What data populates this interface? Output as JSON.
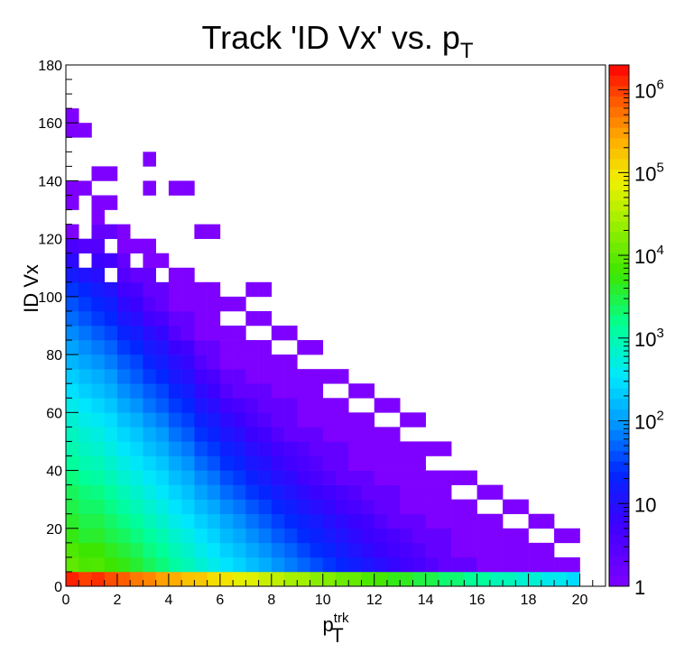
{
  "chart_data": {
    "type": "heatmap",
    "title": "Track 'ID Vx' vs. p",
    "title_subscript": "T",
    "xlabel": "p",
    "xlabel_subscript": "T",
    "xlabel_superscript": "trk",
    "ylabel": "ID Vx",
    "xlim": [
      0,
      21
    ],
    "ylim": [
      0,
      180
    ],
    "x_ticks": [
      "0",
      "2",
      "4",
      "6",
      "8",
      "10",
      "12",
      "14",
      "16",
      "18",
      "20"
    ],
    "y_ticks": [
      "0",
      "20",
      "40",
      "60",
      "80",
      "100",
      "120",
      "140",
      "160",
      "180"
    ],
    "x_bin_width": 0.5,
    "y_bin_width": 5,
    "z_scale": "log",
    "z_range": [
      1,
      2000000
    ],
    "z_labels": [
      {
        "base": "1",
        "exp": ""
      },
      {
        "base": "10",
        "exp": ""
      },
      {
        "base": "10",
        "exp": "2"
      },
      {
        "base": "10",
        "exp": "3"
      },
      {
        "base": "10",
        "exp": "4"
      },
      {
        "base": "10",
        "exp": "5"
      },
      {
        "base": "10",
        "exp": "6"
      }
    ],
    "z_label_values": [
      1,
      10,
      100,
      1000,
      10000,
      100000,
      1000000
    ],
    "column_profiles": [
      [
        1400000,
        10000.0,
        8000,
        5000,
        4000,
        3000,
        2500,
        1800,
        1300,
        1000,
        800,
        600,
        450,
        300,
        220,
        150,
        110,
        80,
        55,
        40,
        28,
        15,
        8,
        4,
        1,
        0,
        1,
        1,
        0,
        0,
        0,
        1,
        1
      ],
      [
        1200000,
        8000,
        6000,
        4000,
        3000,
        2200,
        1700,
        1200,
        900,
        650,
        500,
        380,
        260,
        180,
        130,
        90,
        65,
        45,
        30,
        22,
        15,
        9,
        6,
        3,
        2,
        1,
        1,
        0,
        1,
        0,
        0,
        0,
        0
      ],
      [
        700000,
        5000,
        3500,
        2400,
        1700,
        1200,
        900,
        650,
        480,
        350,
        260,
        180,
        120,
        85,
        60,
        45,
        30,
        20,
        12,
        8,
        5,
        3,
        2,
        1,
        1,
        0,
        0,
        0,
        0,
        0,
        0,
        0,
        0
      ],
      [
        420000,
        2500,
        1800,
        1300,
        900,
        650,
        480,
        360,
        260,
        180,
        130,
        90,
        60,
        45,
        30,
        20,
        14,
        9,
        5,
        3,
        2,
        2,
        1,
        1,
        0,
        0,
        0,
        1,
        0,
        1,
        0,
        0,
        0
      ],
      [
        250000,
        1200,
        900,
        650,
        450,
        320,
        240,
        170,
        120,
        85,
        60,
        42,
        30,
        20,
        13,
        9,
        6,
        3,
        2,
        1,
        1,
        1,
        0,
        0,
        0,
        0,
        0,
        1,
        0,
        0,
        0,
        0,
        0
      ],
      [
        160000,
        600,
        450,
        320,
        230,
        160,
        110,
        80,
        55,
        38,
        27,
        18,
        12,
        8,
        5,
        3,
        2,
        1,
        1,
        1,
        1,
        0,
        0,
        0,
        1,
        0,
        0,
        0,
        0,
        0,
        0,
        0,
        0
      ],
      [
        100000,
        320,
        230,
        160,
        115,
        80,
        55,
        38,
        26,
        18,
        12,
        8,
        5,
        3,
        2,
        1,
        1,
        1,
        0,
        1,
        0,
        0,
        0,
        0,
        0,
        0,
        0,
        0,
        0,
        0,
        0,
        0,
        0
      ],
      [
        65000,
        170,
        120,
        85,
        60,
        42,
        28,
        19,
        13,
        9,
        6,
        4,
        3,
        2,
        1,
        1,
        1,
        0,
        1,
        0,
        1,
        0,
        0,
        0,
        0,
        0,
        0,
        0,
        0,
        0,
        0,
        0,
        0
      ],
      [
        40000,
        90,
        65,
        45,
        32,
        22,
        15,
        10,
        7,
        5,
        3,
        2,
        2,
        1,
        1,
        1,
        0,
        1,
        0,
        0,
        0,
        0,
        0,
        0,
        0,
        0,
        0,
        0,
        0,
        0,
        0,
        0,
        0
      ],
      [
        26000,
        50,
        35,
        25,
        18,
        12,
        8,
        5,
        4,
        3,
        2,
        1,
        1,
        1,
        1,
        0,
        1,
        0,
        0,
        0,
        0,
        0,
        0,
        0,
        0,
        0,
        0,
        0,
        0,
        0,
        0,
        0,
        0
      ],
      [
        17000,
        28,
        20,
        14,
        10,
        7,
        5,
        3,
        2,
        2,
        1,
        1,
        1,
        0,
        1,
        0,
        0,
        0,
        0,
        0,
        0,
        0,
        0,
        0,
        0,
        0,
        0,
        0,
        0,
        0,
        0,
        0,
        0
      ],
      [
        11000,
        16,
        11,
        8,
        6,
        4,
        3,
        2,
        1,
        1,
        1,
        1,
        0,
        1,
        0,
        0,
        0,
        0,
        0,
        0,
        0,
        0,
        0,
        0,
        0,
        0,
        0,
        0,
        0,
        0,
        0,
        0,
        0
      ],
      [
        7000,
        9,
        6,
        5,
        3,
        2,
        2,
        1,
        1,
        1,
        1,
        0,
        1,
        0,
        0,
        0,
        0,
        0,
        0,
        0,
        0,
        0,
        0,
        0,
        0,
        0,
        0,
        0,
        0,
        0,
        0,
        0,
        0
      ],
      [
        4500,
        5,
        4,
        3,
        2,
        1,
        1,
        1,
        1,
        1,
        0,
        1,
        0,
        0,
        0,
        0,
        0,
        0,
        0,
        0,
        0,
        0,
        0,
        0,
        0,
        0,
        0,
        0,
        0,
        0,
        0,
        0,
        0
      ],
      [
        3000,
        3,
        2,
        2,
        1,
        1,
        1,
        1,
        0,
        1,
        0,
        0,
        0,
        0,
        0,
        0,
        0,
        0,
        0,
        0,
        0,
        0,
        0,
        0,
        0,
        0,
        0,
        0,
        0,
        0,
        0,
        0,
        0
      ],
      [
        2000,
        2,
        1,
        1,
        1,
        1,
        0,
        1,
        0,
        0,
        0,
        0,
        0,
        0,
        0,
        0,
        0,
        0,
        0,
        0,
        0,
        0,
        0,
        0,
        0,
        0,
        0,
        0,
        0,
        0,
        0,
        0,
        0
      ],
      [
        1300,
        1,
        1,
        1,
        1,
        0,
        1,
        0,
        0,
        0,
        0,
        0,
        0,
        0,
        0,
        0,
        0,
        0,
        0,
        0,
        0,
        0,
        0,
        0,
        0,
        0,
        0,
        0,
        0,
        0,
        0,
        0,
        0
      ],
      [
        900,
        1,
        1,
        1,
        0,
        1,
        0,
        0,
        0,
        0,
        0,
        0,
        0,
        0,
        0,
        0,
        0,
        0,
        0,
        0,
        0,
        0,
        0,
        0,
        0,
        0,
        0,
        0,
        0,
        0,
        0,
        0,
        0
      ],
      [
        600,
        1,
        1,
        0,
        1,
        0,
        0,
        0,
        0,
        0,
        0,
        0,
        0,
        0,
        0,
        0,
        0,
        0,
        0,
        0,
        0,
        0,
        0,
        0,
        0,
        0,
        0,
        0,
        0,
        0,
        0,
        0,
        0
      ],
      [
        400,
        1,
        0,
        1,
        0,
        0,
        0,
        0,
        0,
        0,
        0,
        0,
        0,
        0,
        0,
        0,
        0,
        0,
        0,
        0,
        0,
        0,
        0,
        0,
        0,
        0,
        0,
        0,
        0,
        0,
        0,
        0,
        0
      ]
    ]
  }
}
